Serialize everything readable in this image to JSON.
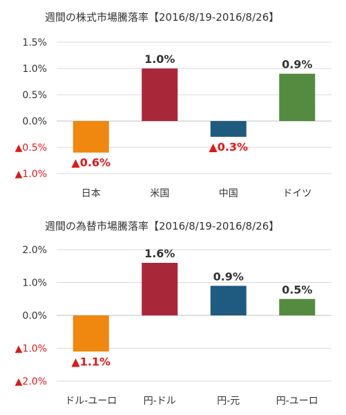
{
  "colors": {
    "orange": "#F0870F",
    "red": "#A8283A",
    "blue": "#1F5A80",
    "green": "#548B40",
    "negative_text": "#E01818",
    "text": "#333333",
    "gridline": "#D9D9D9",
    "zero_line": "#BFBFBF"
  },
  "chart_data": [
    {
      "type": "bar",
      "title": "週間の株式市場騰落率【2016/8/19-2016/8/26】",
      "categories": [
        "日本",
        "米国",
        "中国",
        "ドイツ"
      ],
      "values": [
        -0.6,
        1.0,
        -0.3,
        0.9
      ],
      "data_labels": [
        "▲0.6%",
        "1.0%",
        "▲0.3%",
        "0.9%"
      ],
      "bar_colors": [
        "#F0870F",
        "#A8283A",
        "#1F5A80",
        "#548B40"
      ],
      "y_ticks": [
        1.5,
        1.0,
        0.5,
        0.0,
        -0.5,
        -1.0
      ],
      "y_tick_labels": [
        "1.5%",
        "1.0%",
        "0.5%",
        "0.0%",
        "▲0.5%",
        "▲1.0%"
      ],
      "ylim": [
        -1.0,
        1.5
      ],
      "grid": true,
      "legend": "none"
    },
    {
      "type": "bar",
      "title": "週間の為替市場騰落率【2016/8/19-2016/8/26】",
      "categories": [
        "ドル-ユーロ",
        "円-ドル",
        "円-元",
        "円-ユーロ"
      ],
      "values": [
        -1.1,
        1.6,
        0.9,
        0.5
      ],
      "data_labels": [
        "▲1.1%",
        "1.6%",
        "0.9%",
        "0.5%"
      ],
      "bar_colors": [
        "#F0870F",
        "#A8283A",
        "#1F5A80",
        "#548B40"
      ],
      "y_ticks": [
        2.0,
        1.0,
        0.0,
        -1.0,
        -2.0
      ],
      "y_tick_labels": [
        "2.0%",
        "1.0%",
        "0.0%",
        "▲1.0%",
        "▲2.0%"
      ],
      "ylim": [
        -2.0,
        2.0
      ],
      "grid": true,
      "legend": "none"
    }
  ]
}
